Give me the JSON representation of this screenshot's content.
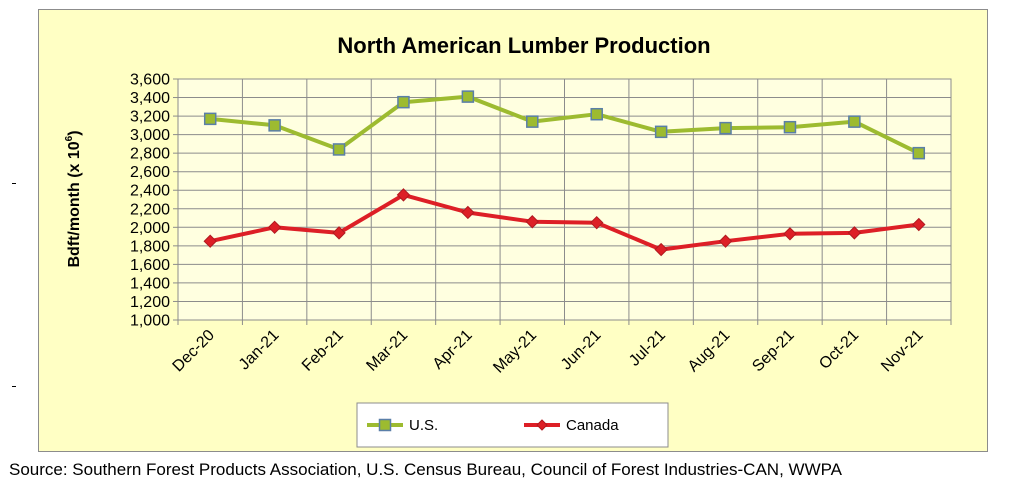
{
  "chart_data": {
    "type": "line",
    "title": "North American Lumber Production",
    "ylabel": "Bdft/month (x 10",
    "ylabel_sup": "6",
    "ylabel_close": ")",
    "categories": [
      "Dec-20",
      "Jan-21",
      "Feb-21",
      "Mar-21",
      "Apr-21",
      "May-21",
      "Jun-21",
      "Jul-21",
      "Aug-21",
      "Sep-21",
      "Oct-21",
      "Nov-21"
    ],
    "ylim": [
      1000,
      3600
    ],
    "yticks": [
      1000,
      1200,
      1400,
      1600,
      1800,
      2000,
      2200,
      2400,
      2600,
      2800,
      3000,
      3200,
      3400,
      3600
    ],
    "ytick_labels": [
      "1,000",
      "1,200",
      "1,400",
      "1,600",
      "1,800",
      "2,000",
      "2,200",
      "2,400",
      "2,600",
      "2,800",
      "3,000",
      "3,200",
      "3,400",
      "3,600"
    ],
    "grid": true,
    "legend_position": "bottom",
    "series": [
      {
        "name": "U.S.",
        "color": "#9dbb30",
        "marker": "square",
        "values": [
          3170,
          3100,
          2840,
          3350,
          3410,
          3140,
          3220,
          3030,
          3070,
          3080,
          3140,
          2800
        ]
      },
      {
        "name": "Canada",
        "color": "#dd1f26",
        "marker": "diamond",
        "values": [
          1850,
          2000,
          1940,
          2350,
          2160,
          2060,
          2050,
          1760,
          1850,
          1930,
          1940,
          2030
        ]
      }
    ]
  },
  "source": "Source: Southern Forest Products Association, U.S. Census Bureau, Council of Forest Industries-CAN, WWPA"
}
